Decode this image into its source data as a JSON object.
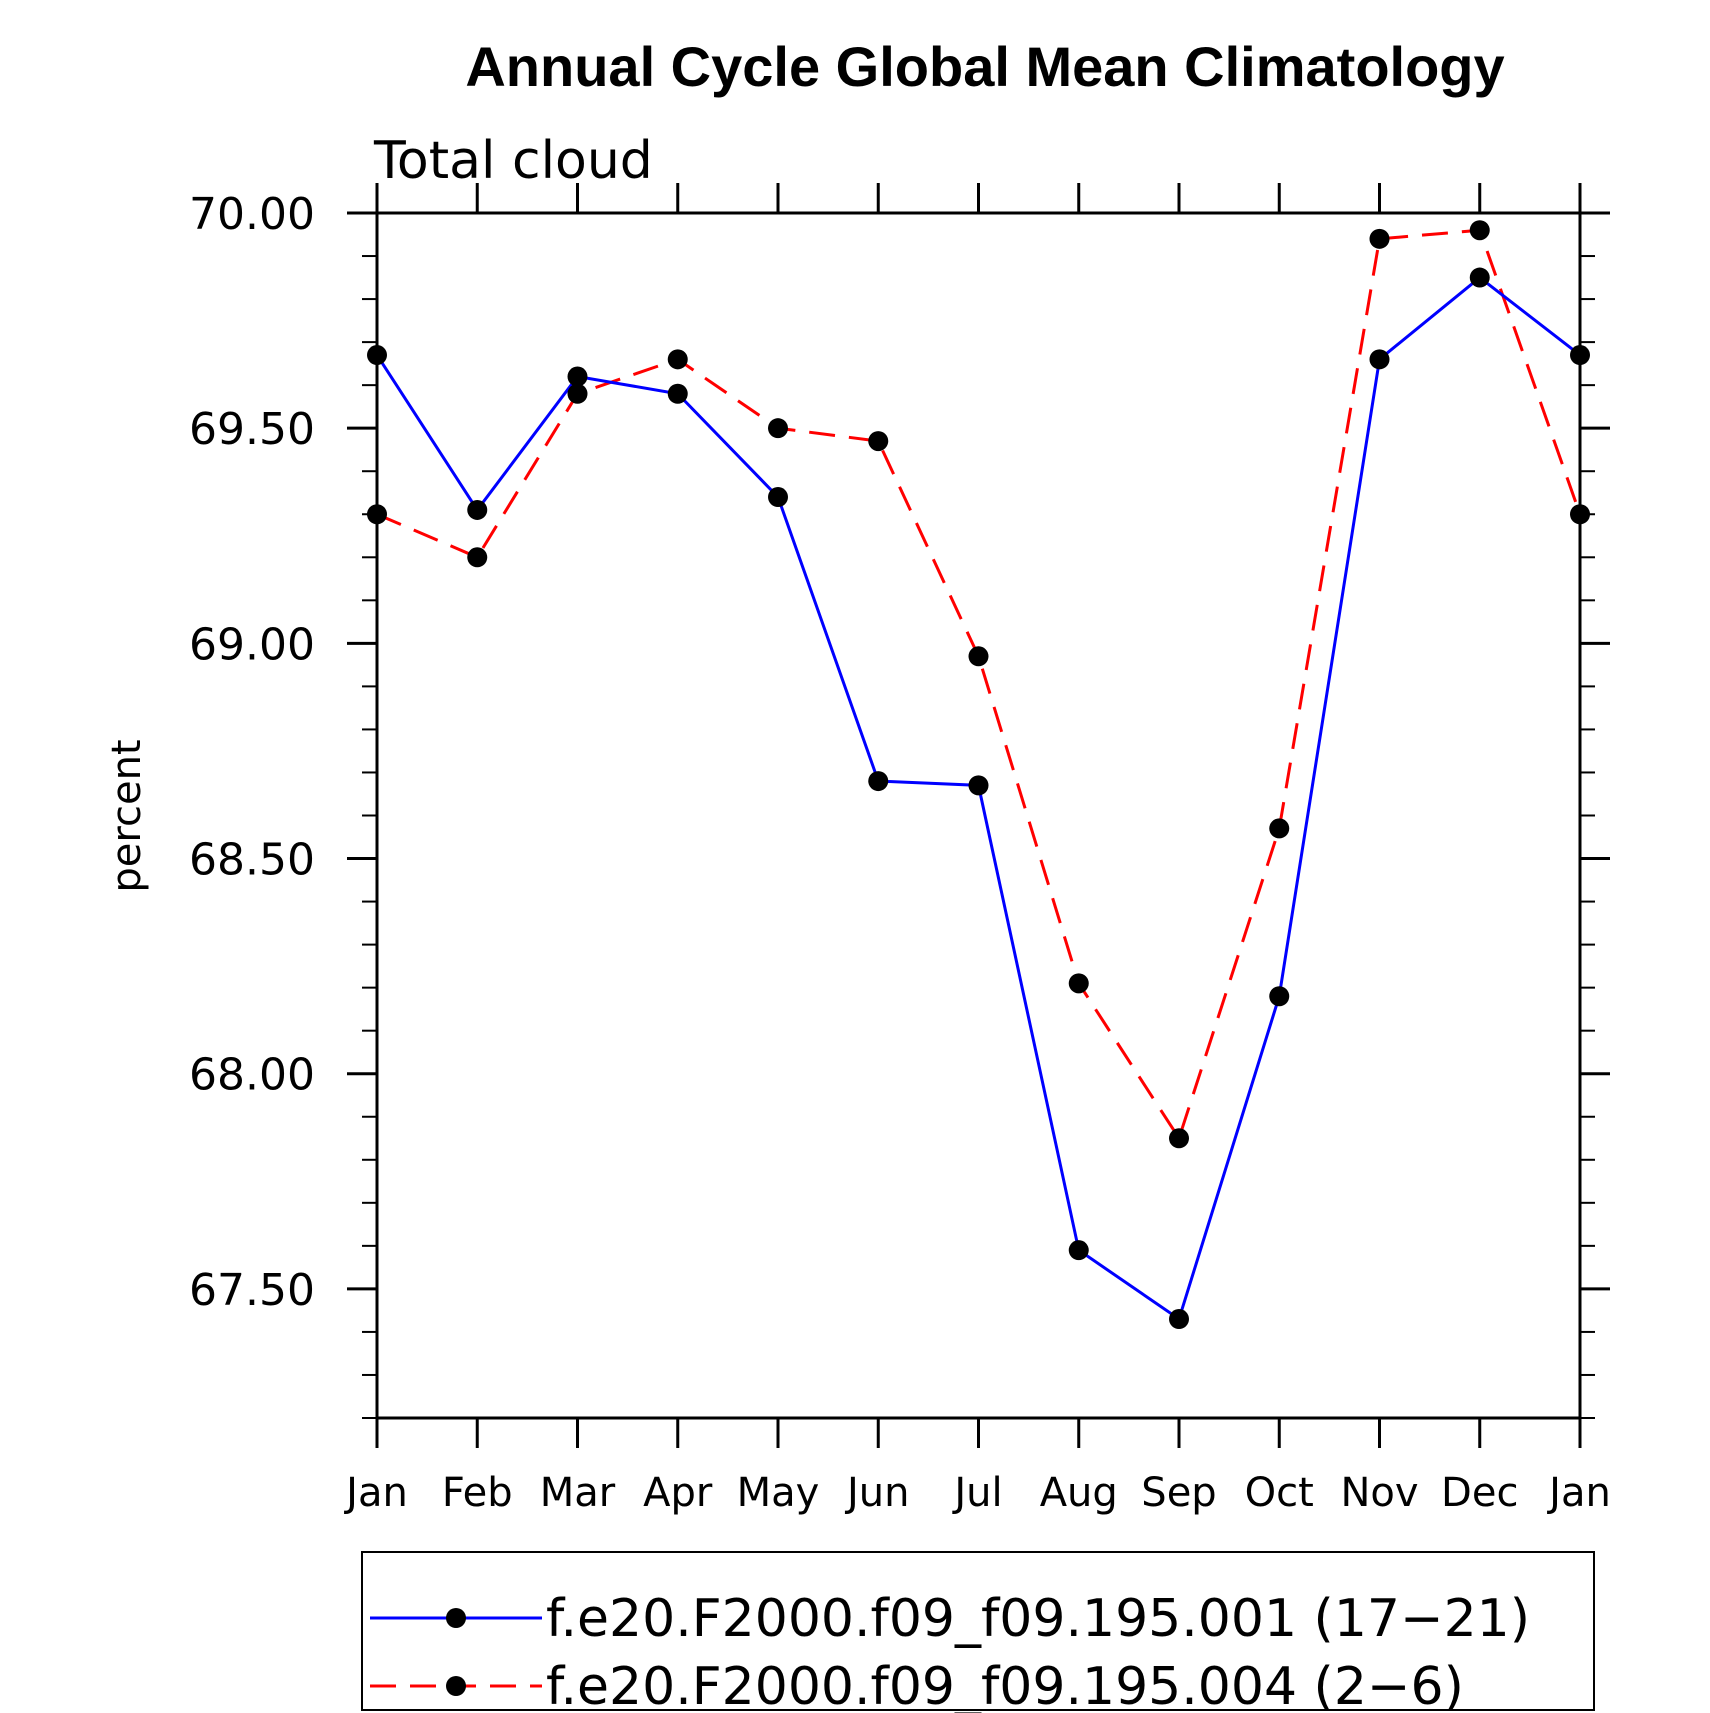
{
  "chart_data": {
    "type": "line",
    "title": "Annual Cycle Global Mean Climatology",
    "subtitle": "Total cloud",
    "xlabel": "",
    "ylabel": "percent",
    "categories": [
      "Jan",
      "Feb",
      "Mar",
      "Apr",
      "May",
      "Jun",
      "Jul",
      "Aug",
      "Sep",
      "Oct",
      "Nov",
      "Dec",
      "Jan"
    ],
    "ylim": [
      67.2,
      70.0
    ],
    "yticks": [
      "70.00",
      "69.50",
      "69.00",
      "68.50",
      "68.00",
      "67.50"
    ],
    "ytick_values": [
      70.0,
      69.5,
      69.0,
      68.5,
      68.0,
      67.5
    ],
    "grid": false,
    "legend_position": "bottom",
    "series": [
      {
        "name": "f.e20.F2000.f09_f09.195.001 (17−21)",
        "color": "#0000ff",
        "dash": "solid",
        "marker": "filled-circle",
        "values": [
          69.67,
          69.31,
          69.62,
          69.58,
          69.34,
          68.68,
          68.67,
          67.59,
          67.43,
          68.18,
          69.66,
          69.85,
          69.67
        ]
      },
      {
        "name": "f.e20.F2000.f09_f09.195.004 (2−6)",
        "color": "#ff0000",
        "dash": "dashed",
        "marker": "filled-circle",
        "values": [
          69.3,
          69.2,
          69.58,
          69.66,
          69.5,
          69.47,
          68.97,
          68.21,
          67.85,
          68.57,
          69.94,
          69.96,
          69.3
        ]
      }
    ]
  }
}
